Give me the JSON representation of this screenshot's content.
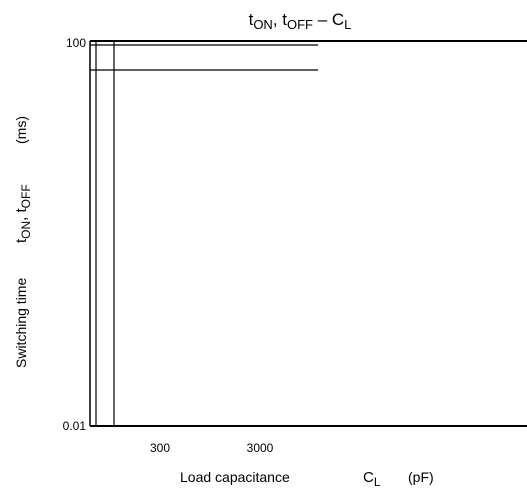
{
  "chart_data": {
    "type": "line",
    "title": {
      "main": "t",
      "sub1": "ON",
      "sep": ", t",
      "sub2": "OFF",
      "dash": " – C",
      "sub3": "L"
    },
    "xlabel": {
      "text": "Load capacitance",
      "symbol": "C",
      "symbol_sub": "L",
      "unit": "(pF)"
    },
    "ylabel": {
      "text": "Switching time",
      "symbol": "t",
      "sub1": "ON",
      "sep": ", t",
      "sub2": "OFF",
      "unit": "(ms)"
    },
    "ylim": [
      0.01,
      100
    ],
    "y_scale": "log",
    "y_ticks": [
      "0.01",
      "100"
    ],
    "x_ticks": [
      "300",
      "3000"
    ],
    "grid": false,
    "series": [
      {
        "values": [
          100
        ]
      },
      {
        "values": [
          50
        ]
      }
    ]
  }
}
